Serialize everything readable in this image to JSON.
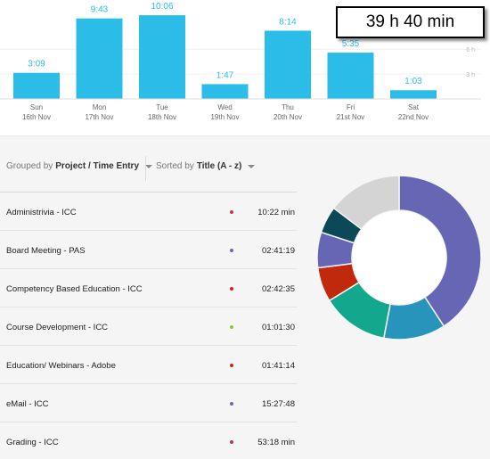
{
  "summary": {
    "total": "39 h 40 min"
  },
  "chart_data": [
    {
      "type": "bar",
      "categories": [
        "Sun",
        "Mon",
        "Tue",
        "Wed",
        "Thu",
        "Fri",
        "Sat"
      ],
      "dates": [
        "16th Nov",
        "17th Nov",
        "18th Nov",
        "19th Nov",
        "20th Nov",
        "21st Nov",
        "22nd Nov"
      ],
      "value_labels": [
        "3:09",
        "9:43",
        "10:06",
        "1:47",
        "8:14",
        "5:35",
        "1:03"
      ],
      "values": [
        3.15,
        9.717,
        10.1,
        1.783,
        8.233,
        5.583,
        1.05
      ],
      "ylabel": "",
      "yticks": [
        {
          "value": 3,
          "label": "3 h"
        },
        {
          "value": 6,
          "label": "6 h"
        }
      ],
      "ylim": [
        0,
        11.4
      ],
      "color": "#2bbde8"
    },
    {
      "type": "pie",
      "variant": "donut",
      "slices": [
        {
          "value": 40.8,
          "color": "#6666b4"
        },
        {
          "value": 12.2,
          "color": "#2694bb"
        },
        {
          "value": 13.2,
          "color": "#13a88e"
        },
        {
          "value": 6.8,
          "color": "#c1290d"
        },
        {
          "value": 7.0,
          "color": "#6666b4"
        },
        {
          "value": 5.3,
          "color": "#0b4858"
        },
        {
          "value": 14.7,
          "color": "#d4d4d4"
        }
      ]
    }
  ],
  "controls": {
    "group_prefix": "Grouped by",
    "group_value": "Project / Time Entry",
    "sort_prefix": "Sorted by",
    "sort_value": "Title (A - z)"
  },
  "entries": [
    {
      "title": "Administrivia - ICC",
      "time": "10:22 min",
      "dot_color": "#c0394f"
    },
    {
      "title": "Board Meeting - PAS",
      "time": "02:41:19",
      "dot_color": "#6d63b8"
    },
    {
      "title": "Competency Based Education - ICC",
      "time": "02:42:35",
      "dot_color": "#c62a1c"
    },
    {
      "title": "Course Development - ICC",
      "time": "01:01:30",
      "dot_color": "#8cc43c"
    },
    {
      "title": "Education/ Webinars - Adobe",
      "time": "01:41:14",
      "dot_color": "#c62a1c"
    },
    {
      "title": "eMail - ICC",
      "time": "15:27:48",
      "dot_color": "#6d63b8"
    },
    {
      "title": "Grading - ICC",
      "time": "53:18 min",
      "dot_color": "#b03a5a"
    }
  ]
}
